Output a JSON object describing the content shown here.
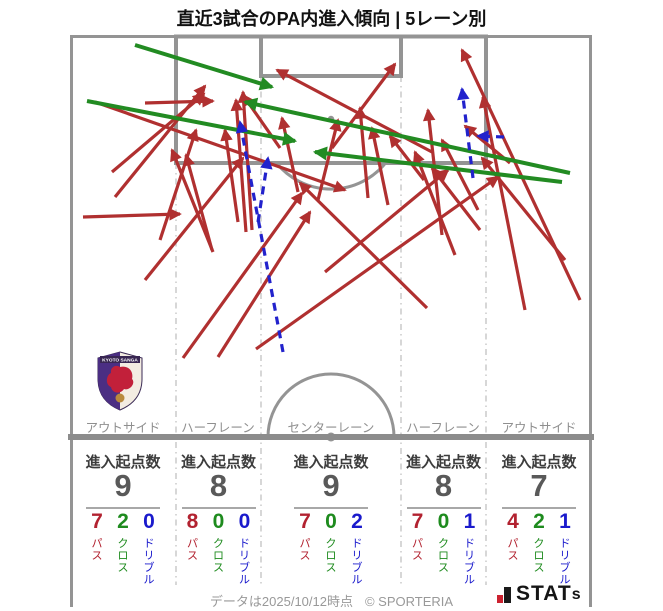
{
  "title": "直近3試合のPA内進入傾向 | 5レーン別",
  "chart_data": {
    "type": "scatter",
    "description": "Penalty-area entry arrows over last 3 matches on a half pitch, split into 5 vertical lanes",
    "lanes": [
      "アウトサイド",
      "ハーフレーン",
      "センターレーン",
      "ハーフレーン",
      "アウトサイド"
    ],
    "legend": {
      "pass": "パス",
      "cross": "クロス",
      "dribble": "ドリブル"
    },
    "colors": {
      "pass": "#B03030",
      "cross": "#228B22",
      "dribble": "#2222CC"
    },
    "entry_origin_counts": [
      9,
      8,
      9,
      8,
      7
    ],
    "series": [
      {
        "name": "パス",
        "values": [
          7,
          8,
          7,
          7,
          4
        ]
      },
      {
        "name": "クロス",
        "values": [
          2,
          0,
          0,
          0,
          2
        ]
      },
      {
        "name": "ドリブル",
        "values": [
          0,
          0,
          2,
          1,
          1
        ]
      }
    ],
    "arrows": [
      {
        "kind": "pass",
        "from": [
          95,
          102
        ],
        "to": [
          345,
          190
        ]
      },
      {
        "kind": "pass",
        "from": [
          115,
          197
        ],
        "to": [
          205,
          86
        ]
      },
      {
        "kind": "pass",
        "from": [
          145,
          103
        ],
        "to": [
          213,
          101
        ]
      },
      {
        "kind": "pass",
        "from": [
          83,
          217
        ],
        "to": [
          180,
          214
        ]
      },
      {
        "kind": "pass",
        "from": [
          145,
          280
        ],
        "to": [
          243,
          158
        ]
      },
      {
        "kind": "pass",
        "from": [
          112,
          172
        ],
        "to": [
          204,
          94
        ]
      },
      {
        "kind": "pass",
        "from": [
          160,
          240
        ],
        "to": [
          196,
          130
        ]
      },
      {
        "kind": "pass",
        "from": [
          252,
          230
        ],
        "to": [
          243,
          92
        ]
      },
      {
        "kind": "pass",
        "from": [
          246,
          232
        ],
        "to": [
          236,
          100
        ]
      },
      {
        "kind": "pass",
        "from": [
          213,
          252
        ],
        "to": [
          172,
          150
        ]
      },
      {
        "kind": "pass",
        "from": [
          183,
          358
        ],
        "to": [
          302,
          193
        ]
      },
      {
        "kind": "pass",
        "from": [
          218,
          357
        ],
        "to": [
          310,
          212
        ]
      },
      {
        "kind": "pass",
        "from": [
          256,
          349
        ],
        "to": [
          498,
          177
        ]
      },
      {
        "kind": "pass",
        "from": [
          212,
          250
        ],
        "to": [
          186,
          155
        ]
      },
      {
        "kind": "pass",
        "from": [
          238,
          222
        ],
        "to": [
          225,
          130
        ]
      },
      {
        "kind": "pass",
        "from": [
          332,
          148
        ],
        "to": [
          395,
          64
        ]
      },
      {
        "kind": "pass",
        "from": [
          280,
          148
        ],
        "to": [
          243,
          95
        ]
      },
      {
        "kind": "pass",
        "from": [
          368,
          198
        ],
        "to": [
          360,
          108
        ]
      },
      {
        "kind": "pass",
        "from": [
          325,
          272
        ],
        "to": [
          448,
          170
        ]
      },
      {
        "kind": "pass",
        "from": [
          298,
          192
        ],
        "to": [
          282,
          118
        ]
      },
      {
        "kind": "pass",
        "from": [
          318,
          200
        ],
        "to": [
          338,
          120
        ]
      },
      {
        "kind": "pass",
        "from": [
          388,
          205
        ],
        "to": [
          372,
          128
        ]
      },
      {
        "kind": "pass",
        "from": [
          432,
          152
        ],
        "to": [
          277,
          70
        ]
      },
      {
        "kind": "pass",
        "from": [
          442,
          235
        ],
        "to": [
          428,
          110
        ]
      },
      {
        "kind": "pass",
        "from": [
          427,
          308
        ],
        "to": [
          300,
          183
        ]
      },
      {
        "kind": "pass",
        "from": [
          424,
          180
        ],
        "to": [
          390,
          136
        ]
      },
      {
        "kind": "pass",
        "from": [
          480,
          230
        ],
        "to": [
          432,
          168
        ]
      },
      {
        "kind": "pass",
        "from": [
          455,
          255
        ],
        "to": [
          415,
          152
        ]
      },
      {
        "kind": "pass",
        "from": [
          478,
          210
        ],
        "to": [
          442,
          140
        ]
      },
      {
        "kind": "pass",
        "from": [
          580,
          300
        ],
        "to": [
          462,
          50
        ]
      },
      {
        "kind": "pass",
        "from": [
          525,
          310
        ],
        "to": [
          483,
          97
        ]
      },
      {
        "kind": "pass",
        "from": [
          510,
          163
        ],
        "to": [
          465,
          126
        ]
      },
      {
        "kind": "pass",
        "from": [
          565,
          260
        ],
        "to": [
          482,
          158
        ]
      },
      {
        "kind": "cross",
        "from": [
          135,
          45
        ],
        "to": [
          272,
          87
        ]
      },
      {
        "kind": "cross",
        "from": [
          87,
          101
        ],
        "to": [
          295,
          141
        ]
      },
      {
        "kind": "cross",
        "from": [
          570,
          173
        ],
        "to": [
          245,
          102
        ]
      },
      {
        "kind": "cross",
        "from": [
          562,
          182
        ],
        "to": [
          315,
          152
        ]
      },
      {
        "kind": "dribble",
        "from": [
          283,
          352
        ],
        "to": [
          240,
          122
        ]
      },
      {
        "kind": "dribble",
        "from": [
          258,
          222
        ],
        "to": [
          268,
          158
        ]
      },
      {
        "kind": "dribble",
        "from": [
          473,
          178
        ],
        "to": [
          462,
          89
        ]
      },
      {
        "kind": "dribble",
        "from": [
          504,
          137
        ],
        "to": [
          478,
          136
        ]
      }
    ]
  },
  "stats": {
    "header": "進入起点数",
    "columns": [
      {
        "lane": "アウトサイド",
        "total": "9",
        "pass": "7",
        "cross": "2",
        "dribble": "0"
      },
      {
        "lane": "ハーフレーン",
        "total": "8",
        "pass": "8",
        "cross": "0",
        "dribble": "0"
      },
      {
        "lane": "センターレーン",
        "total": "9",
        "pass": "7",
        "cross": "0",
        "dribble": "2"
      },
      {
        "lane": "ハーフレーン",
        "total": "8",
        "pass": "7",
        "cross": "0",
        "dribble": "1"
      },
      {
        "lane": "アウトサイド",
        "total": "7",
        "pass": "4",
        "cross": "2",
        "dribble": "1"
      }
    ],
    "row_labels": {
      "pass": "パス",
      "cross": "クロス",
      "dribble": "ドリブル"
    }
  },
  "footer": {
    "note": "データは2025/10/12時点",
    "copyright": "© SPORTERIA",
    "brand_main": "STAT",
    "brand_small": "s"
  },
  "team_logo": "Kyoto Sanga FC crest"
}
